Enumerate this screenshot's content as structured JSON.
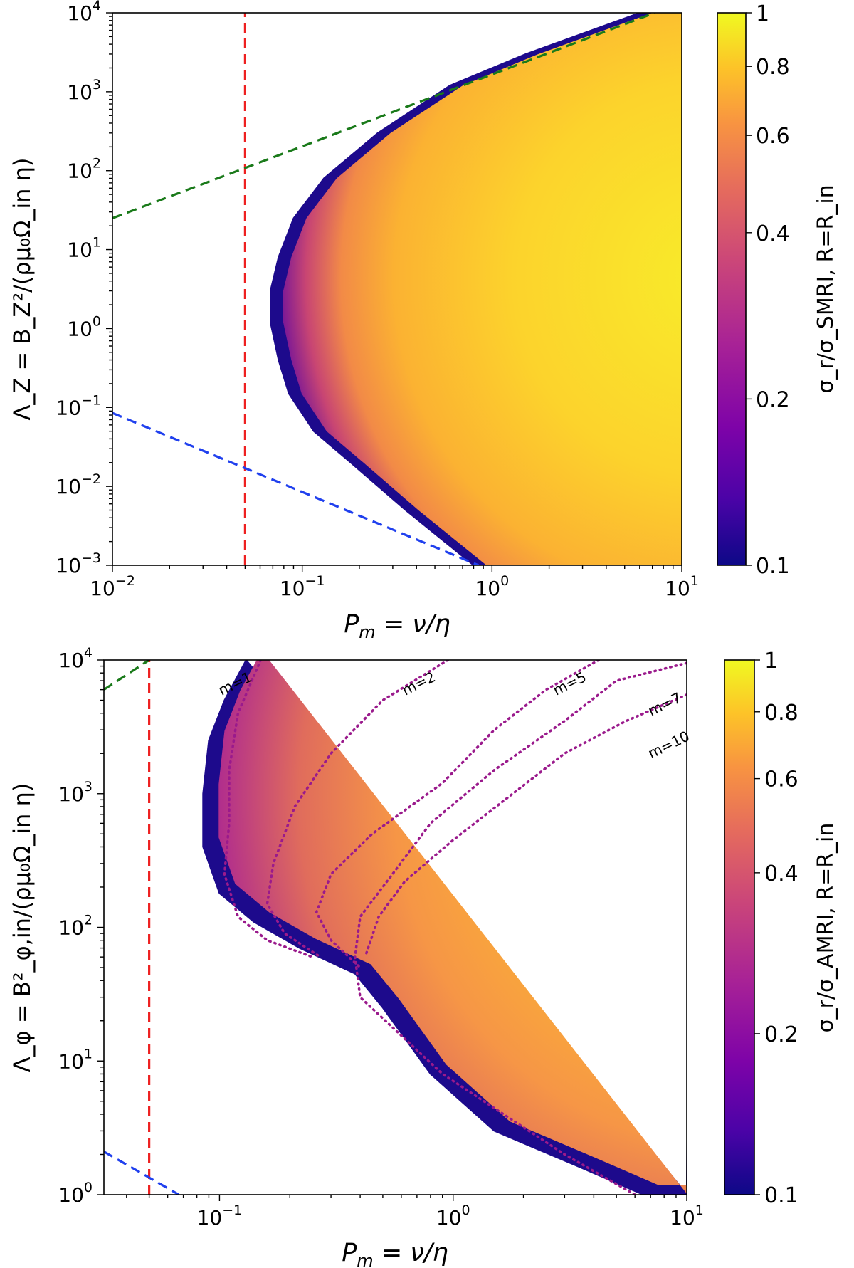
{
  "chart_data": [
    {
      "type": "heatmap",
      "panel": "top",
      "xlabel": "P_m = ν/η",
      "ylabel": "Λ_Z = B_Z²/(ρμ₀Ω_in η)",
      "xscale": "log",
      "yscale": "log",
      "xlim": [
        0.01,
        10
      ],
      "ylim": [
        0.001,
        10000
      ],
      "xticks": [
        {
          "value": 0.01,
          "base": "10",
          "exp": "−2"
        },
        {
          "value": 0.1,
          "base": "10",
          "exp": "−1"
        },
        {
          "value": 1,
          "base": "10",
          "exp": "0"
        },
        {
          "value": 10,
          "base": "10",
          "exp": "1"
        }
      ],
      "yticks": [
        {
          "value": 0.001,
          "base": "10",
          "exp": "−3"
        },
        {
          "value": 0.01,
          "base": "10",
          "exp": "−2"
        },
        {
          "value": 0.1,
          "base": "10",
          "exp": "−1"
        },
        {
          "value": 1,
          "base": "10",
          "exp": "0"
        },
        {
          "value": 10,
          "base": "10",
          "exp": "1"
        },
        {
          "value": 100,
          "base": "10",
          "exp": "2"
        },
        {
          "value": 1000,
          "base": "10",
          "exp": "3"
        },
        {
          "value": 10000,
          "base": "10",
          "exp": "4"
        }
      ],
      "colorbar": {
        "label": "σ_r/σ_SMRI, R=R_in",
        "range": [
          0.1,
          1
        ],
        "scale": "log",
        "ticks": [
          "0.1",
          "0.2",
          "0.4",
          "0.6",
          "0.8",
          "1"
        ],
        "colormap": "plasma"
      },
      "unstable_boundary": {
        "x": [
          0.8,
          0.35,
          0.18,
          0.115,
          0.085,
          0.075,
          0.068,
          0.068,
          0.075,
          0.09,
          0.13,
          0.25,
          0.6,
          1.5,
          6.0,
          10
        ],
        "y": [
          0.001,
          0.005,
          0.02,
          0.05,
          0.15,
          0.4,
          1.2,
          3.0,
          8.0,
          25,
          80,
          300,
          1200,
          3000,
          10000,
          10000
        ]
      },
      "lines": [
        {
          "name": "vertical reference",
          "style": "dashed",
          "color": "#ee2020",
          "x": [
            0.05,
            0.05
          ],
          "y": [
            0.001,
            10000
          ]
        },
        {
          "name": "upper limit",
          "style": "dashed",
          "color": "#1a7a1a",
          "x": [
            0.01,
            7.2
          ],
          "y": [
            25,
            10000
          ]
        },
        {
          "name": "lower limit",
          "style": "dashed",
          "color": "#2040ee",
          "x": [
            0.01,
            0.85
          ],
          "y": [
            0.085,
            0.001
          ]
        }
      ]
    },
    {
      "type": "heatmap",
      "panel": "bottom",
      "xlabel": "P_m = ν/η",
      "ylabel": "Λ_φ = B²_φ,in/(ρμ₀Ω_in η)",
      "xscale": "log",
      "yscale": "log",
      "xlim": [
        0.032,
        10
      ],
      "ylim": [
        1,
        10000
      ],
      "xticks": [
        {
          "value": 0.1,
          "base": "10",
          "exp": "−1"
        },
        {
          "value": 1,
          "base": "10",
          "exp": "0"
        },
        {
          "value": 10,
          "base": "10",
          "exp": "1"
        }
      ],
      "yticks": [
        {
          "value": 1,
          "base": "10",
          "exp": "0"
        },
        {
          "value": 10,
          "base": "10",
          "exp": "1"
        },
        {
          "value": 100,
          "base": "10",
          "exp": "2"
        },
        {
          "value": 1000,
          "base": "10",
          "exp": "3"
        },
        {
          "value": 10000,
          "base": "10",
          "exp": "4"
        }
      ],
      "colorbar": {
        "label": "σ_r/σ_AMRI, R=R_in",
        "range": [
          0.1,
          1
        ],
        "scale": "log",
        "ticks": [
          "0.1",
          "0.2",
          "0.4",
          "0.6",
          "0.8",
          "1"
        ],
        "colormap": "plasma"
      },
      "unstable_boundary": {
        "x": [
          0.13,
          0.105,
          0.09,
          0.085,
          0.085,
          0.1,
          0.14,
          0.22,
          0.38,
          0.5,
          0.8,
          1.5,
          3.5,
          6.5,
          10
        ],
        "y": [
          10000,
          5000,
          2500,
          1000,
          400,
          180,
          110,
          70,
          45,
          25,
          8,
          3,
          1.6,
          1,
          1
        ]
      },
      "lines": [
        {
          "name": "vertical reference",
          "style": "dashed",
          "color": "#ee2020",
          "x": [
            0.05,
            0.05
          ],
          "y": [
            1,
            10000
          ]
        },
        {
          "name": "upper limit",
          "style": "dashed",
          "color": "#1a7a1a",
          "x": [
            0.032,
            0.05
          ],
          "y": [
            6000,
            10000
          ]
        },
        {
          "name": "lower limit",
          "style": "dashed",
          "color": "#2040ee",
          "x": [
            0.032,
            0.067
          ],
          "y": [
            2.1,
            1
          ]
        }
      ],
      "contours": [
        {
          "label": "m=1",
          "x": [
            0.15,
            0.12,
            0.11,
            0.11,
            0.105,
            0.12,
            0.16,
            0.25
          ],
          "y": [
            10000,
            4000,
            1500,
            600,
            250,
            120,
            80,
            60
          ]
        },
        {
          "label": "m=2",
          "x": [
            0.95,
            0.5,
            0.3,
            0.21,
            0.17,
            0.16,
            0.19,
            0.27
          ],
          "y": [
            10000,
            5000,
            2000,
            800,
            300,
            150,
            90,
            60
          ]
        },
        {
          "label": "m=5",
          "x": [
            4.2,
            2.5,
            1.5,
            0.9,
            0.45,
            0.3,
            0.26,
            0.3,
            0.4
          ],
          "y": [
            10000,
            6000,
            3000,
            1200,
            500,
            250,
            130,
            80,
            50
          ]
        },
        {
          "label": "m=7",
          "x": [
            10,
            5.0,
            3.0,
            1.5,
            0.8,
            0.55,
            0.4,
            0.38,
            0.4,
            0.9,
            3.0,
            6.0
          ],
          "y": [
            9500,
            7000,
            3500,
            1500,
            600,
            250,
            120,
            60,
            30,
            8,
            2,
            1
          ]
        },
        {
          "label": "m=10",
          "x": [
            10,
            5.5,
            3.0,
            1.8,
            1.0,
            0.62,
            0.48,
            0.42
          ],
          "y": [
            5500,
            3500,
            2000,
            1000,
            450,
            220,
            120,
            60
          ]
        }
      ],
      "contour_color": "#9a1a8c"
    }
  ]
}
